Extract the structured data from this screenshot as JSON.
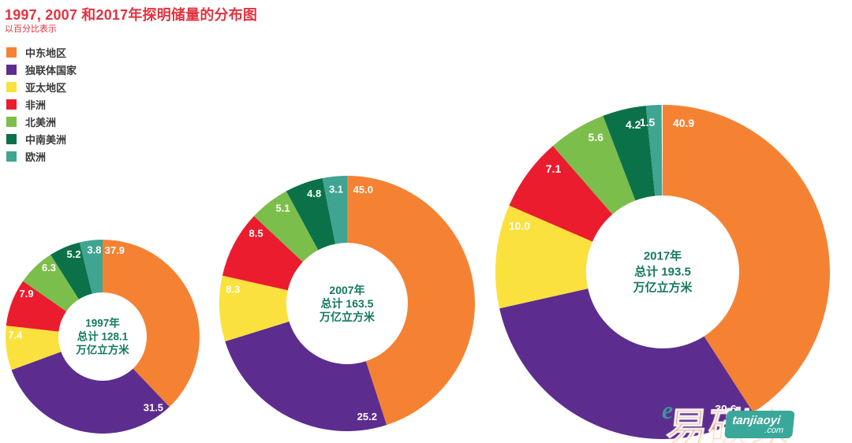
{
  "header": {
    "title": "1997, 2007 和2017年探明储量的分布图",
    "subtitle": "以百分比表示",
    "title_color": "#e23340"
  },
  "legend": {
    "items": [
      {
        "label": "中东地区",
        "color": "#f58233"
      },
      {
        "label": "独联体国家",
        "color": "#5c2d8f"
      },
      {
        "label": "亚太地区",
        "color": "#fae13d"
      },
      {
        "label": "非洲",
        "color": "#eb1c2d"
      },
      {
        "label": "北美洲",
        "color": "#7cbe4b"
      },
      {
        "label": "中南美洲",
        "color": "#0b7149"
      },
      {
        "label": "欧洲",
        "color": "#3fa492"
      }
    ]
  },
  "chart_data": [
    {
      "type": "pie",
      "subtype": "donut",
      "year": "1997",
      "total": 128.1,
      "unit": "万亿立方米",
      "center_lines": [
        "1997年",
        "总计 128.1",
        "万亿立方米"
      ],
      "categories": [
        "中东地区",
        "独联体国家",
        "亚太地区",
        "非洲",
        "北美洲",
        "中南美洲",
        "欧洲"
      ],
      "values": [
        37.9,
        31.5,
        7.4,
        7.9,
        6.3,
        5.2,
        3.8
      ],
      "value_labels": [
        "37.9",
        "31.5",
        "7.4",
        "7.9",
        "6.3",
        "5.2",
        "3.8"
      ],
      "legend_position": "top-left",
      "start_angle_deg": 0,
      "direction": "clockwise"
    },
    {
      "type": "pie",
      "subtype": "donut",
      "year": "2007",
      "total": 163.5,
      "unit": "万亿立方米",
      "center_lines": [
        "2007年",
        "总计 163.5",
        "万亿立方米"
      ],
      "categories": [
        "中东地区",
        "独联体国家",
        "亚太地区",
        "非洲",
        "北美洲",
        "中南美洲",
        "欧洲"
      ],
      "values": [
        45.0,
        25.2,
        8.3,
        8.5,
        5.1,
        4.8,
        3.1
      ],
      "value_labels": [
        "45.0",
        "25.2",
        "8.3",
        "8.5",
        "5.1",
        "4.8",
        "3.1"
      ],
      "start_angle_deg": 0,
      "direction": "clockwise"
    },
    {
      "type": "pie",
      "subtype": "donut",
      "year": "2017",
      "total": 193.5,
      "unit": "万亿立方米",
      "center_lines": [
        "2017年",
        "总计 193.5",
        "万亿立方米"
      ],
      "categories": [
        "中东地区",
        "独联体国家",
        "亚太地区",
        "非洲",
        "北美洲",
        "中南美洲",
        "欧洲"
      ],
      "values": [
        40.9,
        30.6,
        10.0,
        7.1,
        5.6,
        4.2,
        1.5
      ],
      "value_labels": [
        "40.9",
        "30.6",
        "10.0",
        "7.1",
        "5.6",
        "4.2",
        "1.5"
      ],
      "start_angle_deg": 0,
      "direction": "clockwise"
    }
  ],
  "styles": {
    "value_label_color": "#ffffff",
    "center_text_color": "#15795f"
  },
  "watermark": {
    "logo_e": "e",
    "logo_text": "易碳家",
    "site": "tanjiaoyi",
    "tld": ".com",
    "color": "#3aa79b"
  }
}
